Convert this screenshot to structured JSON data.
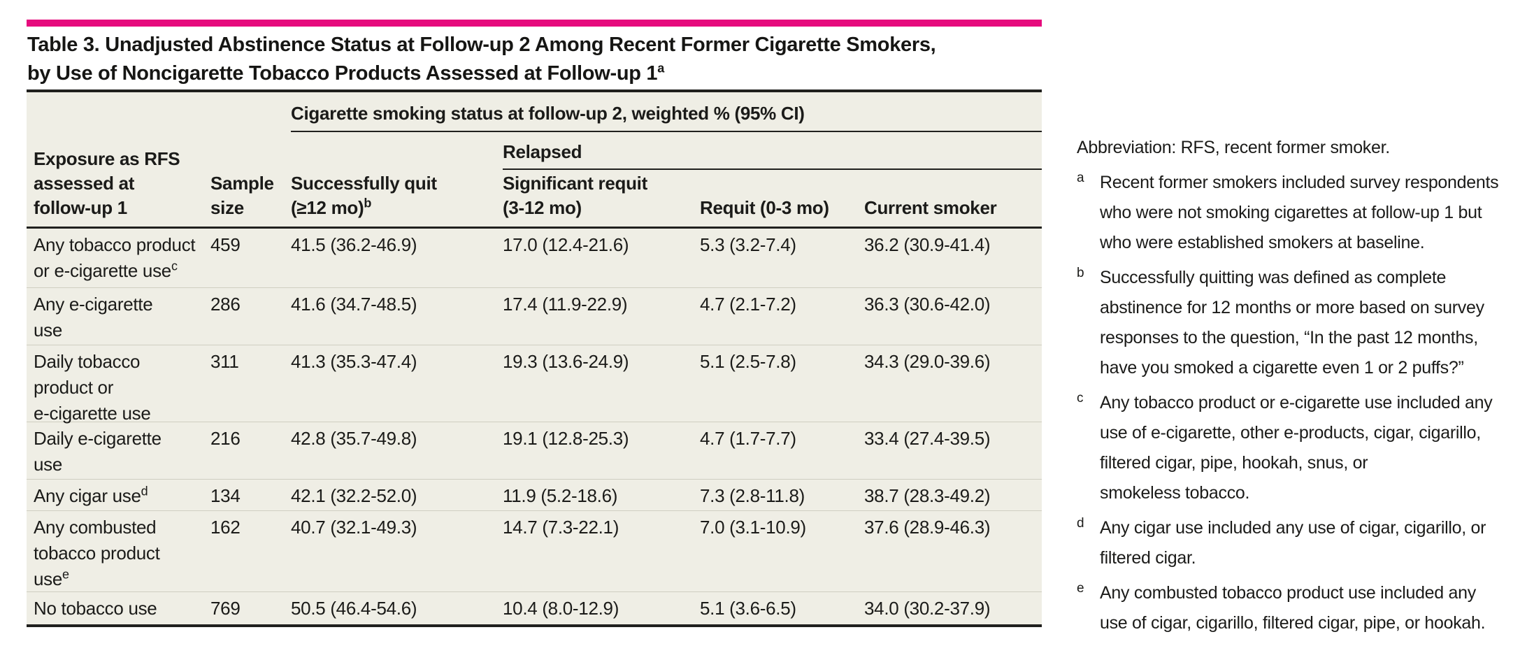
{
  "colors": {
    "accent_bar": "#e60b7d",
    "table_background": "#efeee5",
    "dark_rule": "#20201e",
    "row_separator": "#cfcec1"
  },
  "title": {
    "line1": "Table 3. Unadjusted Abstinence Status at Follow-up 2 Among Recent Former Cigarette Smokers,",
    "line2": "by Use of Noncigarette Tobacco Products Assessed at Follow-up 1",
    "sup": "a"
  },
  "table": {
    "spanner": "Cigarette smoking status at follow-up 2, weighted % (95% CI)",
    "subspanner": "Relapsed",
    "headers": {
      "exposure_lines": [
        "Exposure as RFS",
        "assessed at",
        "follow-up 1"
      ],
      "sample_lines": [
        "Sample",
        "size"
      ],
      "quit_lines": [
        "Successfully quit",
        "(≥12 mo)"
      ],
      "quit_sup": "b",
      "sig_requit_lines": [
        "Significant requit",
        "(3-12 mo)"
      ],
      "requit": "Requit (0-3 mo)",
      "current": "Current smoker"
    },
    "rows": [
      {
        "label_lines": [
          "Any tobacco product",
          "or e-cigarette use"
        ],
        "label_sup": "c",
        "n": "459",
        "quit": "41.5 (36.2-46.9)",
        "sig_requit": "17.0 (12.4-21.6)",
        "requit": "5.3 (3.2-7.4)",
        "current": "36.2 (30.9-41.4)"
      },
      {
        "label_lines": [
          "Any e-cigarette",
          "use"
        ],
        "label_sup": "",
        "n": "286",
        "quit": "41.6 (34.7-48.5)",
        "sig_requit": "17.4 (11.9-22.9)",
        "requit": "4.7 (2.1-7.2)",
        "current": "36.3 (30.6-42.0)"
      },
      {
        "label_lines": [
          "Daily tobacco",
          "product or",
          "e-cigarette use"
        ],
        "label_sup": "",
        "n": "311",
        "quit": "41.3 (35.3-47.4)",
        "sig_requit": "19.3 (13.6-24.9)",
        "requit": "5.1 (2.5-7.8)",
        "current": "34.3 (29.0-39.6)"
      },
      {
        "label_lines": [
          "Daily e-cigarette",
          "use"
        ],
        "label_sup": "",
        "n": "216",
        "quit": "42.8 (35.7-49.8)",
        "sig_requit": "19.1 (12.8-25.3)",
        "requit": "4.7 (1.7-7.7)",
        "current": "33.4 (27.4-39.5)"
      },
      {
        "label_lines": [
          "Any cigar use"
        ],
        "label_sup": "d",
        "n": "134",
        "quit": "42.1 (32.2-52.0)",
        "sig_requit": "11.9 (5.2-18.6)",
        "requit": "7.3 (2.8-11.8)",
        "current": "38.7 (28.3-49.2)"
      },
      {
        "label_lines": [
          "Any combusted",
          "tobacco product",
          "use"
        ],
        "label_sup": "e",
        "n": "162",
        "quit": "40.7 (32.1-49.3)",
        "sig_requit": "14.7 (7.3-22.1)",
        "requit": "7.0 (3.1-10.9)",
        "current": "37.6 (28.9-46.3)"
      },
      {
        "label_lines": [
          "No tobacco use"
        ],
        "label_sup": "",
        "n": "769",
        "quit": "50.5 (46.4-54.6)",
        "sig_requit": "10.4 (8.0-12.9)",
        "requit": "5.1 (3.6-6.5)",
        "current": "34.0 (30.2-37.9)"
      }
    ]
  },
  "notes": {
    "abbreviation": "Abbreviation: RFS, recent former smoker.",
    "items": [
      {
        "letter": "a",
        "lines": [
          "Recent former smokers included survey respondents",
          "who were not smoking cigarettes at follow-up 1 but",
          "who were established smokers at baseline."
        ]
      },
      {
        "letter": "b",
        "lines": [
          "Successfully quitting was defined as complete",
          "abstinence for 12 months or more based on survey",
          "responses to the question, “In the past 12 months,",
          "have you smoked a cigarette even 1 or 2 puffs?”"
        ]
      },
      {
        "letter": "c",
        "lines": [
          "Any tobacco product or e-cigarette use included any",
          "use of e-cigarette, other e-products, cigar, cigarillo,",
          "filtered cigar, pipe, hookah, snus, or",
          "smokeless tobacco."
        ]
      },
      {
        "letter": "d",
        "lines": [
          "Any cigar use included any use of cigar, cigarillo, or",
          "filtered cigar."
        ]
      },
      {
        "letter": "e",
        "lines": [
          "Any combusted tobacco product use included any",
          "use of cigar, cigarillo, filtered cigar, pipe, or hookah."
        ]
      }
    ]
  }
}
